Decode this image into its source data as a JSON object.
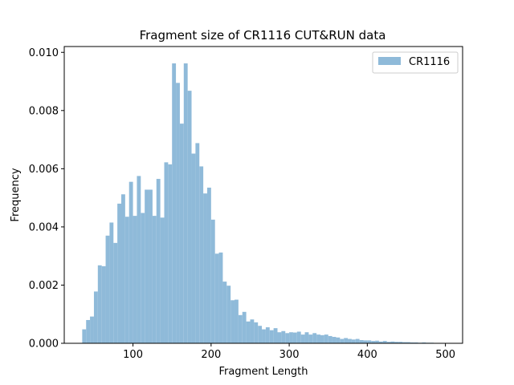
{
  "chart_data": {
    "type": "bar",
    "title": "Fragment size of CR1116 CUT&RUN data",
    "xlabel": "Fragment Length",
    "ylabel": "Frequency",
    "xlim": [
      12,
      522
    ],
    "ylim": [
      0,
      0.0102
    ],
    "xticks": [
      100,
      200,
      300,
      400,
      500
    ],
    "yticks": [
      0.0,
      0.002,
      0.004,
      0.006,
      0.008,
      0.01
    ],
    "ytick_labels": [
      "0.000",
      "0.002",
      "0.004",
      "0.006",
      "0.008",
      "0.010"
    ],
    "grid": false,
    "legend": {
      "position": "top-right",
      "entries": [
        "CR1116"
      ]
    },
    "series": [
      {
        "name": "CR1116",
        "color": "#8fbad9",
        "bin_edges": [
          35,
          40,
          45,
          50,
          55,
          60,
          65,
          70,
          75,
          80,
          85,
          90,
          95,
          100,
          105,
          110,
          115,
          120,
          125,
          130,
          135,
          140,
          145,
          150,
          155,
          160,
          165,
          170,
          175,
          180,
          185,
          190,
          195,
          200,
          205,
          210,
          215,
          220,
          225,
          230,
          235,
          240,
          245,
          250,
          255,
          260,
          265,
          270,
          275,
          280,
          285,
          290,
          295,
          300,
          305,
          310,
          315,
          320,
          325,
          330,
          335,
          340,
          345,
          350,
          355,
          360,
          365,
          370,
          375,
          380,
          385,
          390,
          395,
          400,
          405,
          410,
          415,
          420,
          425,
          430,
          435,
          440,
          445,
          450,
          455,
          460,
          465,
          470,
          475,
          480,
          485,
          490,
          495,
          500
        ],
        "values": [
          0.00048,
          0.0008,
          0.00092,
          0.00178,
          0.00268,
          0.00265,
          0.0037,
          0.00415,
          0.00345,
          0.0048,
          0.00512,
          0.00435,
          0.00555,
          0.00438,
          0.00575,
          0.00448,
          0.00528,
          0.00528,
          0.00438,
          0.00565,
          0.00432,
          0.00622,
          0.00615,
          0.00962,
          0.00895,
          0.00755,
          0.00962,
          0.00868,
          0.00652,
          0.00688,
          0.00608,
          0.00515,
          0.00535,
          0.00425,
          0.00308,
          0.00312,
          0.00212,
          0.00198,
          0.00148,
          0.0015,
          0.00097,
          0.00108,
          0.00075,
          0.00082,
          0.00072,
          0.0006,
          0.00048,
          0.00055,
          0.00045,
          0.00052,
          0.00038,
          0.00042,
          0.00035,
          0.00038,
          0.00037,
          0.0004,
          0.0003,
          0.00038,
          0.0003,
          0.00035,
          0.0003,
          0.00028,
          0.0003,
          0.00025,
          0.00022,
          0.0002,
          0.00015,
          0.00018,
          0.00015,
          0.00013,
          0.00015,
          0.00011,
          0.0001,
          0.0001,
          8e-05,
          9e-05,
          6e-05,
          8e-05,
          5e-05,
          6e-05,
          5e-05,
          5e-05,
          4e-05,
          4e-05,
          3e-05,
          3e-05,
          2e-05,
          3e-05,
          2e-05,
          2e-05,
          1e-05,
          1e-05,
          1e-05
        ]
      }
    ]
  }
}
